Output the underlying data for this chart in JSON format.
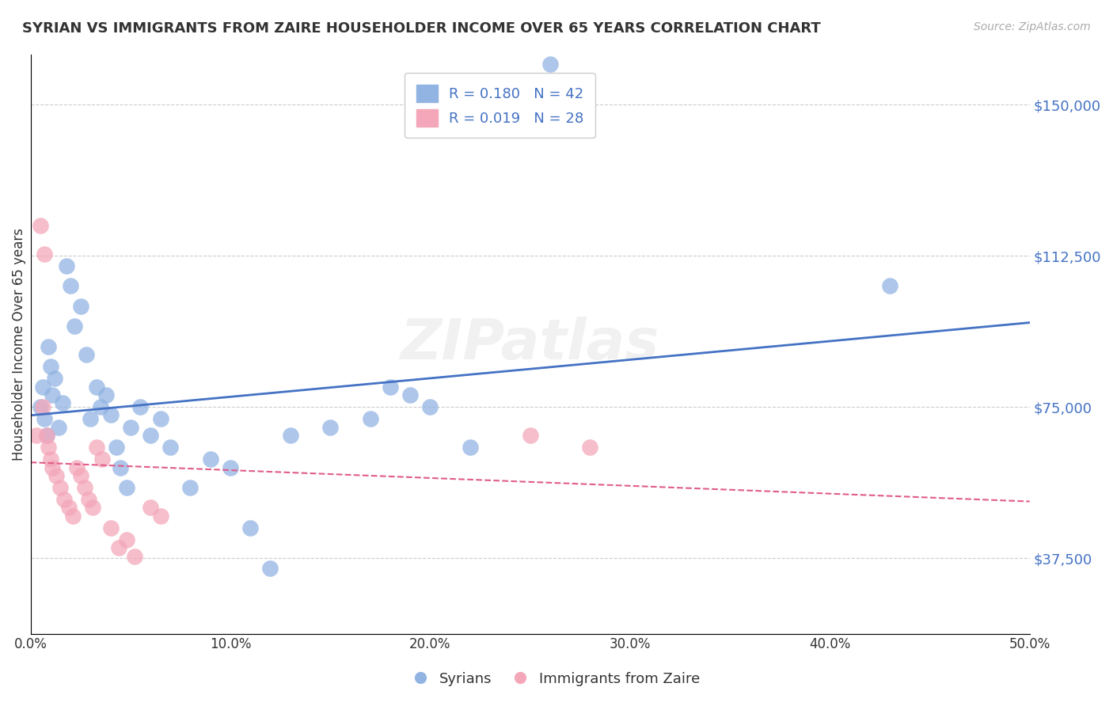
{
  "title": "SYRIAN VS IMMIGRANTS FROM ZAIRE HOUSEHOLDER INCOME OVER 65 YEARS CORRELATION CHART",
  "source": "Source: ZipAtlas.com",
  "xlabel_bottom": "",
  "ylabel": "Householder Income Over 65 years",
  "legend_label1": "Syrians",
  "legend_label2": "Immigrants from Zaire",
  "R1": 0.18,
  "N1": 42,
  "R2": 0.019,
  "N2": 28,
  "xlim": [
    0,
    0.5
  ],
  "ylim": [
    18750,
    162500
  ],
  "yticks": [
    37500,
    75000,
    112500,
    150000
  ],
  "ytick_labels": [
    "$37,500",
    "$75,000",
    "$112,500",
    "$150,000"
  ],
  "xticks": [
    0.0,
    0.1,
    0.2,
    0.3,
    0.4,
    0.5
  ],
  "xtick_labels": [
    "0.0%",
    "10.0%",
    "20.0%",
    "30.0%",
    "40.0%",
    "50.0%"
  ],
  "color_blue": "#92b4e3",
  "color_pink": "#f4a7b9",
  "line_color_blue": "#4472c4",
  "line_color_pink": "#e05c8a",
  "watermark": "ZIPatlas",
  "syrians_x": [
    0.005,
    0.006,
    0.007,
    0.008,
    0.009,
    0.01,
    0.011,
    0.012,
    0.014,
    0.016,
    0.018,
    0.02,
    0.022,
    0.025,
    0.028,
    0.03,
    0.033,
    0.035,
    0.038,
    0.04,
    0.043,
    0.045,
    0.048,
    0.05,
    0.055,
    0.06,
    0.065,
    0.07,
    0.08,
    0.09,
    0.1,
    0.11,
    0.12,
    0.13,
    0.15,
    0.17,
    0.18,
    0.19,
    0.2,
    0.22,
    0.43,
    0.26
  ],
  "syrians_y": [
    75000,
    80000,
    72000,
    68000,
    90000,
    85000,
    78000,
    82000,
    70000,
    76000,
    110000,
    105000,
    95000,
    100000,
    88000,
    72000,
    80000,
    75000,
    78000,
    73000,
    65000,
    60000,
    55000,
    70000,
    75000,
    68000,
    72000,
    65000,
    55000,
    62000,
    60000,
    45000,
    35000,
    68000,
    70000,
    72000,
    80000,
    78000,
    75000,
    65000,
    105000,
    160000
  ],
  "zaire_x": [
    0.003,
    0.005,
    0.006,
    0.007,
    0.008,
    0.009,
    0.01,
    0.011,
    0.013,
    0.015,
    0.017,
    0.019,
    0.021,
    0.023,
    0.025,
    0.027,
    0.029,
    0.031,
    0.033,
    0.036,
    0.04,
    0.044,
    0.048,
    0.052,
    0.06,
    0.065,
    0.25,
    0.28
  ],
  "zaire_y": [
    68000,
    120000,
    75000,
    113000,
    68000,
    65000,
    62000,
    60000,
    58000,
    55000,
    52000,
    50000,
    48000,
    60000,
    58000,
    55000,
    52000,
    50000,
    65000,
    62000,
    45000,
    40000,
    42000,
    38000,
    50000,
    48000,
    68000,
    65000
  ]
}
